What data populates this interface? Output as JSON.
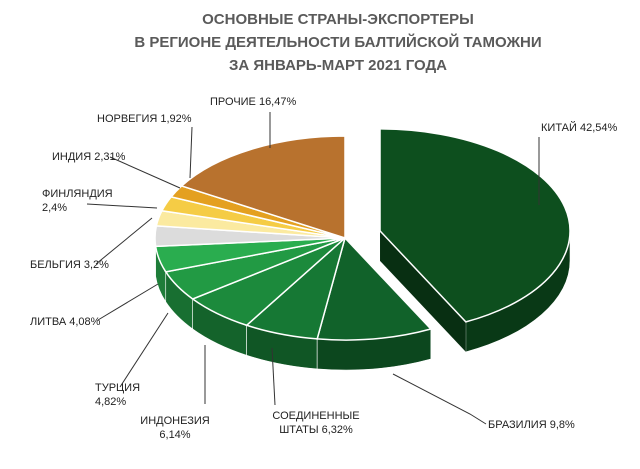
{
  "chart_data": {
    "type": "pie",
    "title_lines": [
      "ОСНОВНЫЕ СТРАНЫ-ЭКСПОРТЕРЫ",
      "В РЕГИОНЕ ДЕЯТЕЛЬНОСТИ БАЛТИЙСКОЙ ТАМОЖНИ",
      "ЗА ЯНВАРЬ-МАРТ 2021 ГОДА"
    ],
    "slices": [
      {
        "name": "КИТАЙ",
        "value": 42.54,
        "label_lines": [
          "КИТАЙ 42,54%"
        ],
        "color": "#0d4f1e",
        "exploded": true
      },
      {
        "name": "БРАЗИЛИЯ",
        "value": 9.8,
        "label_lines": [
          "БРАЗИЛИЯ 9,8%"
        ],
        "color": "#11622a",
        "exploded": false
      },
      {
        "name": "СОЕДИНЕННЫЕ ШТАТЫ",
        "value": 6.32,
        "label_lines": [
          "СОЕДИНЕННЫЕ",
          "ШТАТЫ 6,32%"
        ],
        "color": "#167834",
        "exploded": false
      },
      {
        "name": "ИНДОНЕЗИЯ",
        "value": 6.14,
        "label_lines": [
          "ИНДОНЕЗИЯ",
          "6,14%"
        ],
        "color": "#1c8a3c",
        "exploded": false
      },
      {
        "name": "ТУРЦИЯ",
        "value": 4.82,
        "label_lines": [
          "ТУРЦИЯ",
          "4,82%"
        ],
        "color": "#229a44",
        "exploded": false
      },
      {
        "name": "ЛИТВА",
        "value": 4.08,
        "label_lines": [
          "ЛИТВА 4,08%"
        ],
        "color": "#2aad4f",
        "exploded": false
      },
      {
        "name": "БЕЛЬГИЯ",
        "value": 3.2,
        "label_lines": [
          "БЕЛЬГИЯ 3,2%"
        ],
        "color": "#dcdcdc",
        "exploded": false
      },
      {
        "name": "ФИНЛЯНДИЯ",
        "value": 2.4,
        "label_lines": [
          "ФИНЛЯНДИЯ",
          "2,4%"
        ],
        "color": "#fbeaa0",
        "exploded": false
      },
      {
        "name": "ИНДИЯ",
        "value": 2.31,
        "label_lines": [
          "ИНДИЯ 2,31%"
        ],
        "color": "#f5cc45",
        "exploded": false
      },
      {
        "name": "НОРВЕГИЯ",
        "value": 1.92,
        "label_lines": [
          "НОРВЕГИЯ 1,92%"
        ],
        "color": "#e4a020",
        "exploded": false
      },
      {
        "name": "ПРОЧИЕ",
        "value": 16.47,
        "label_lines": [
          "ПРОЧИЕ 16,47%"
        ],
        "color": "#b8722e",
        "exploded": false
      }
    ]
  }
}
